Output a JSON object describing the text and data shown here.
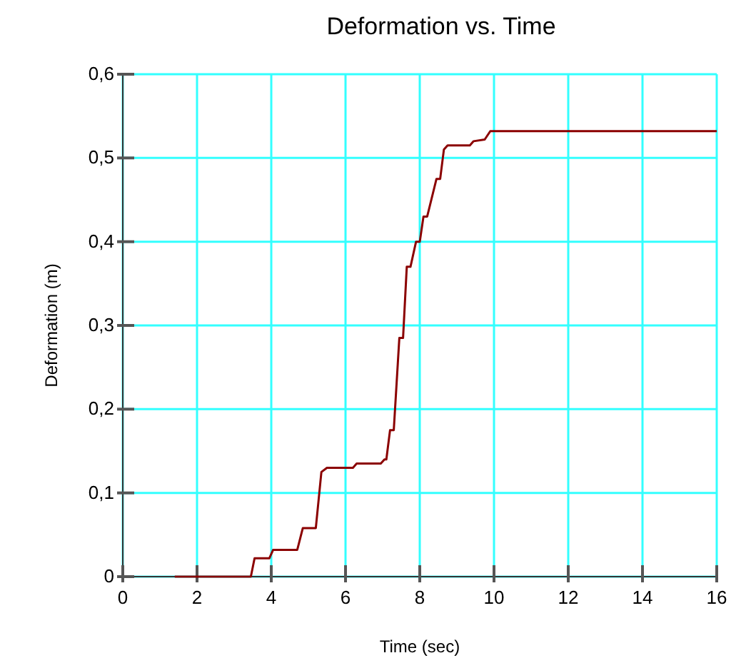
{
  "chart_data": {
    "type": "line",
    "title": "Deformation vs. Time",
    "xlabel": "Time (sec)",
    "ylabel": "Deformation (m)",
    "xlim": [
      0,
      16
    ],
    "xticks": [
      0,
      2,
      4,
      6,
      8,
      10,
      12,
      14,
      16
    ],
    "ylim": [
      0,
      0.6
    ],
    "yticks": [
      {
        "value": 0,
        "label": "0"
      },
      {
        "value": 0.1,
        "label": "0,1"
      },
      {
        "value": 0.2,
        "label": "0,2"
      },
      {
        "value": 0.3,
        "label": "0,3"
      },
      {
        "value": 0.4,
        "label": "0,4"
      },
      {
        "value": 0.5,
        "label": "0,5"
      },
      {
        "value": 0.6,
        "label": "0,6"
      }
    ],
    "grid": true,
    "marker": "none",
    "line_style": "solid",
    "series": [
      {
        "color": "#8b0000",
        "x": [
          1.4,
          3.45,
          3.55,
          3.95,
          4.05,
          4.7,
          4.85,
          5.2,
          5.35,
          5.5,
          6.2,
          6.3,
          6.95,
          7.05,
          7.1,
          7.2,
          7.3,
          7.45,
          7.55,
          7.65,
          7.75,
          7.9,
          8.0,
          8.1,
          8.2,
          8.45,
          8.55,
          8.65,
          8.75,
          9.35,
          9.45,
          9.75,
          9.9,
          16
        ],
        "values": [
          0,
          0,
          0.022,
          0.022,
          0.032,
          0.032,
          0.058,
          0.058,
          0.125,
          0.13,
          0.13,
          0.135,
          0.135,
          0.14,
          0.14,
          0.175,
          0.175,
          0.285,
          0.285,
          0.37,
          0.37,
          0.4,
          0.4,
          0.43,
          0.43,
          0.475,
          0.475,
          0.51,
          0.515,
          0.515,
          0.52,
          0.522,
          0.532,
          0.532
        ]
      }
    ]
  }
}
